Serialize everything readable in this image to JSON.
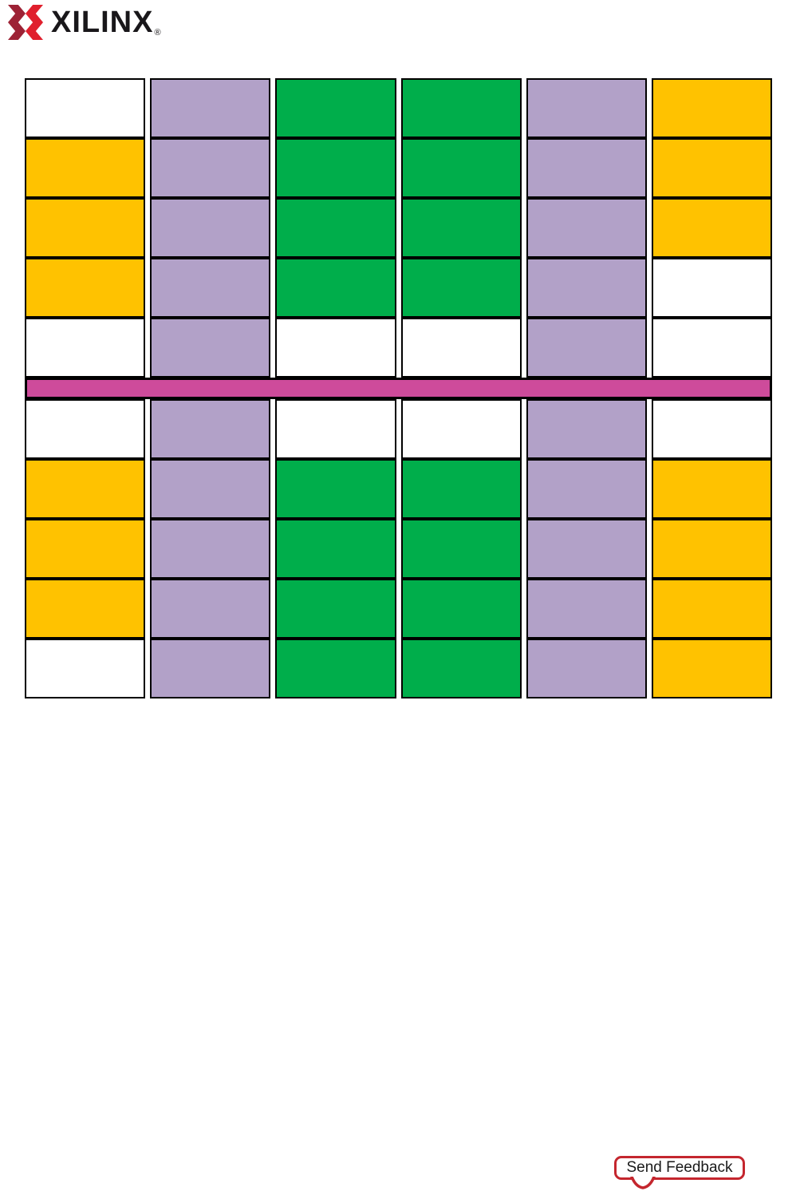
{
  "brand": {
    "name": "XILINX",
    "registered": "®",
    "mark_dark": "#9D2235",
    "mark_bright": "#E01F2D",
    "text_color": "#19171A"
  },
  "figure": {
    "description": "device floorplan color grid",
    "columns": 6,
    "palette": {
      "white": "#FFFFFF",
      "purple": "#B2A1C8",
      "green": "#00AE4B",
      "orange": "#FFC200",
      "divider": "#CE4B9B",
      "border": "#000000"
    },
    "rows_above_divider": [
      [
        "white",
        "purple",
        "green",
        "green",
        "purple",
        "orange"
      ],
      [
        "orange",
        "purple",
        "green",
        "green",
        "purple",
        "orange"
      ],
      [
        "orange",
        "purple",
        "green",
        "green",
        "purple",
        "orange"
      ],
      [
        "orange",
        "purple",
        "green",
        "green",
        "purple",
        "white"
      ],
      [
        "white",
        "purple",
        "white",
        "white",
        "purple",
        "white"
      ]
    ],
    "rows_below_divider": [
      [
        "white",
        "purple",
        "white",
        "white",
        "purple",
        "white"
      ],
      [
        "orange",
        "purple",
        "green",
        "green",
        "purple",
        "orange"
      ],
      [
        "orange",
        "purple",
        "green",
        "green",
        "purple",
        "orange"
      ],
      [
        "orange",
        "purple",
        "green",
        "green",
        "purple",
        "orange"
      ],
      [
        "white",
        "purple",
        "green",
        "green",
        "purple",
        "orange"
      ]
    ]
  },
  "footer": {
    "feedback_label": "Send Feedback",
    "feedback_border": "#C4262E"
  }
}
